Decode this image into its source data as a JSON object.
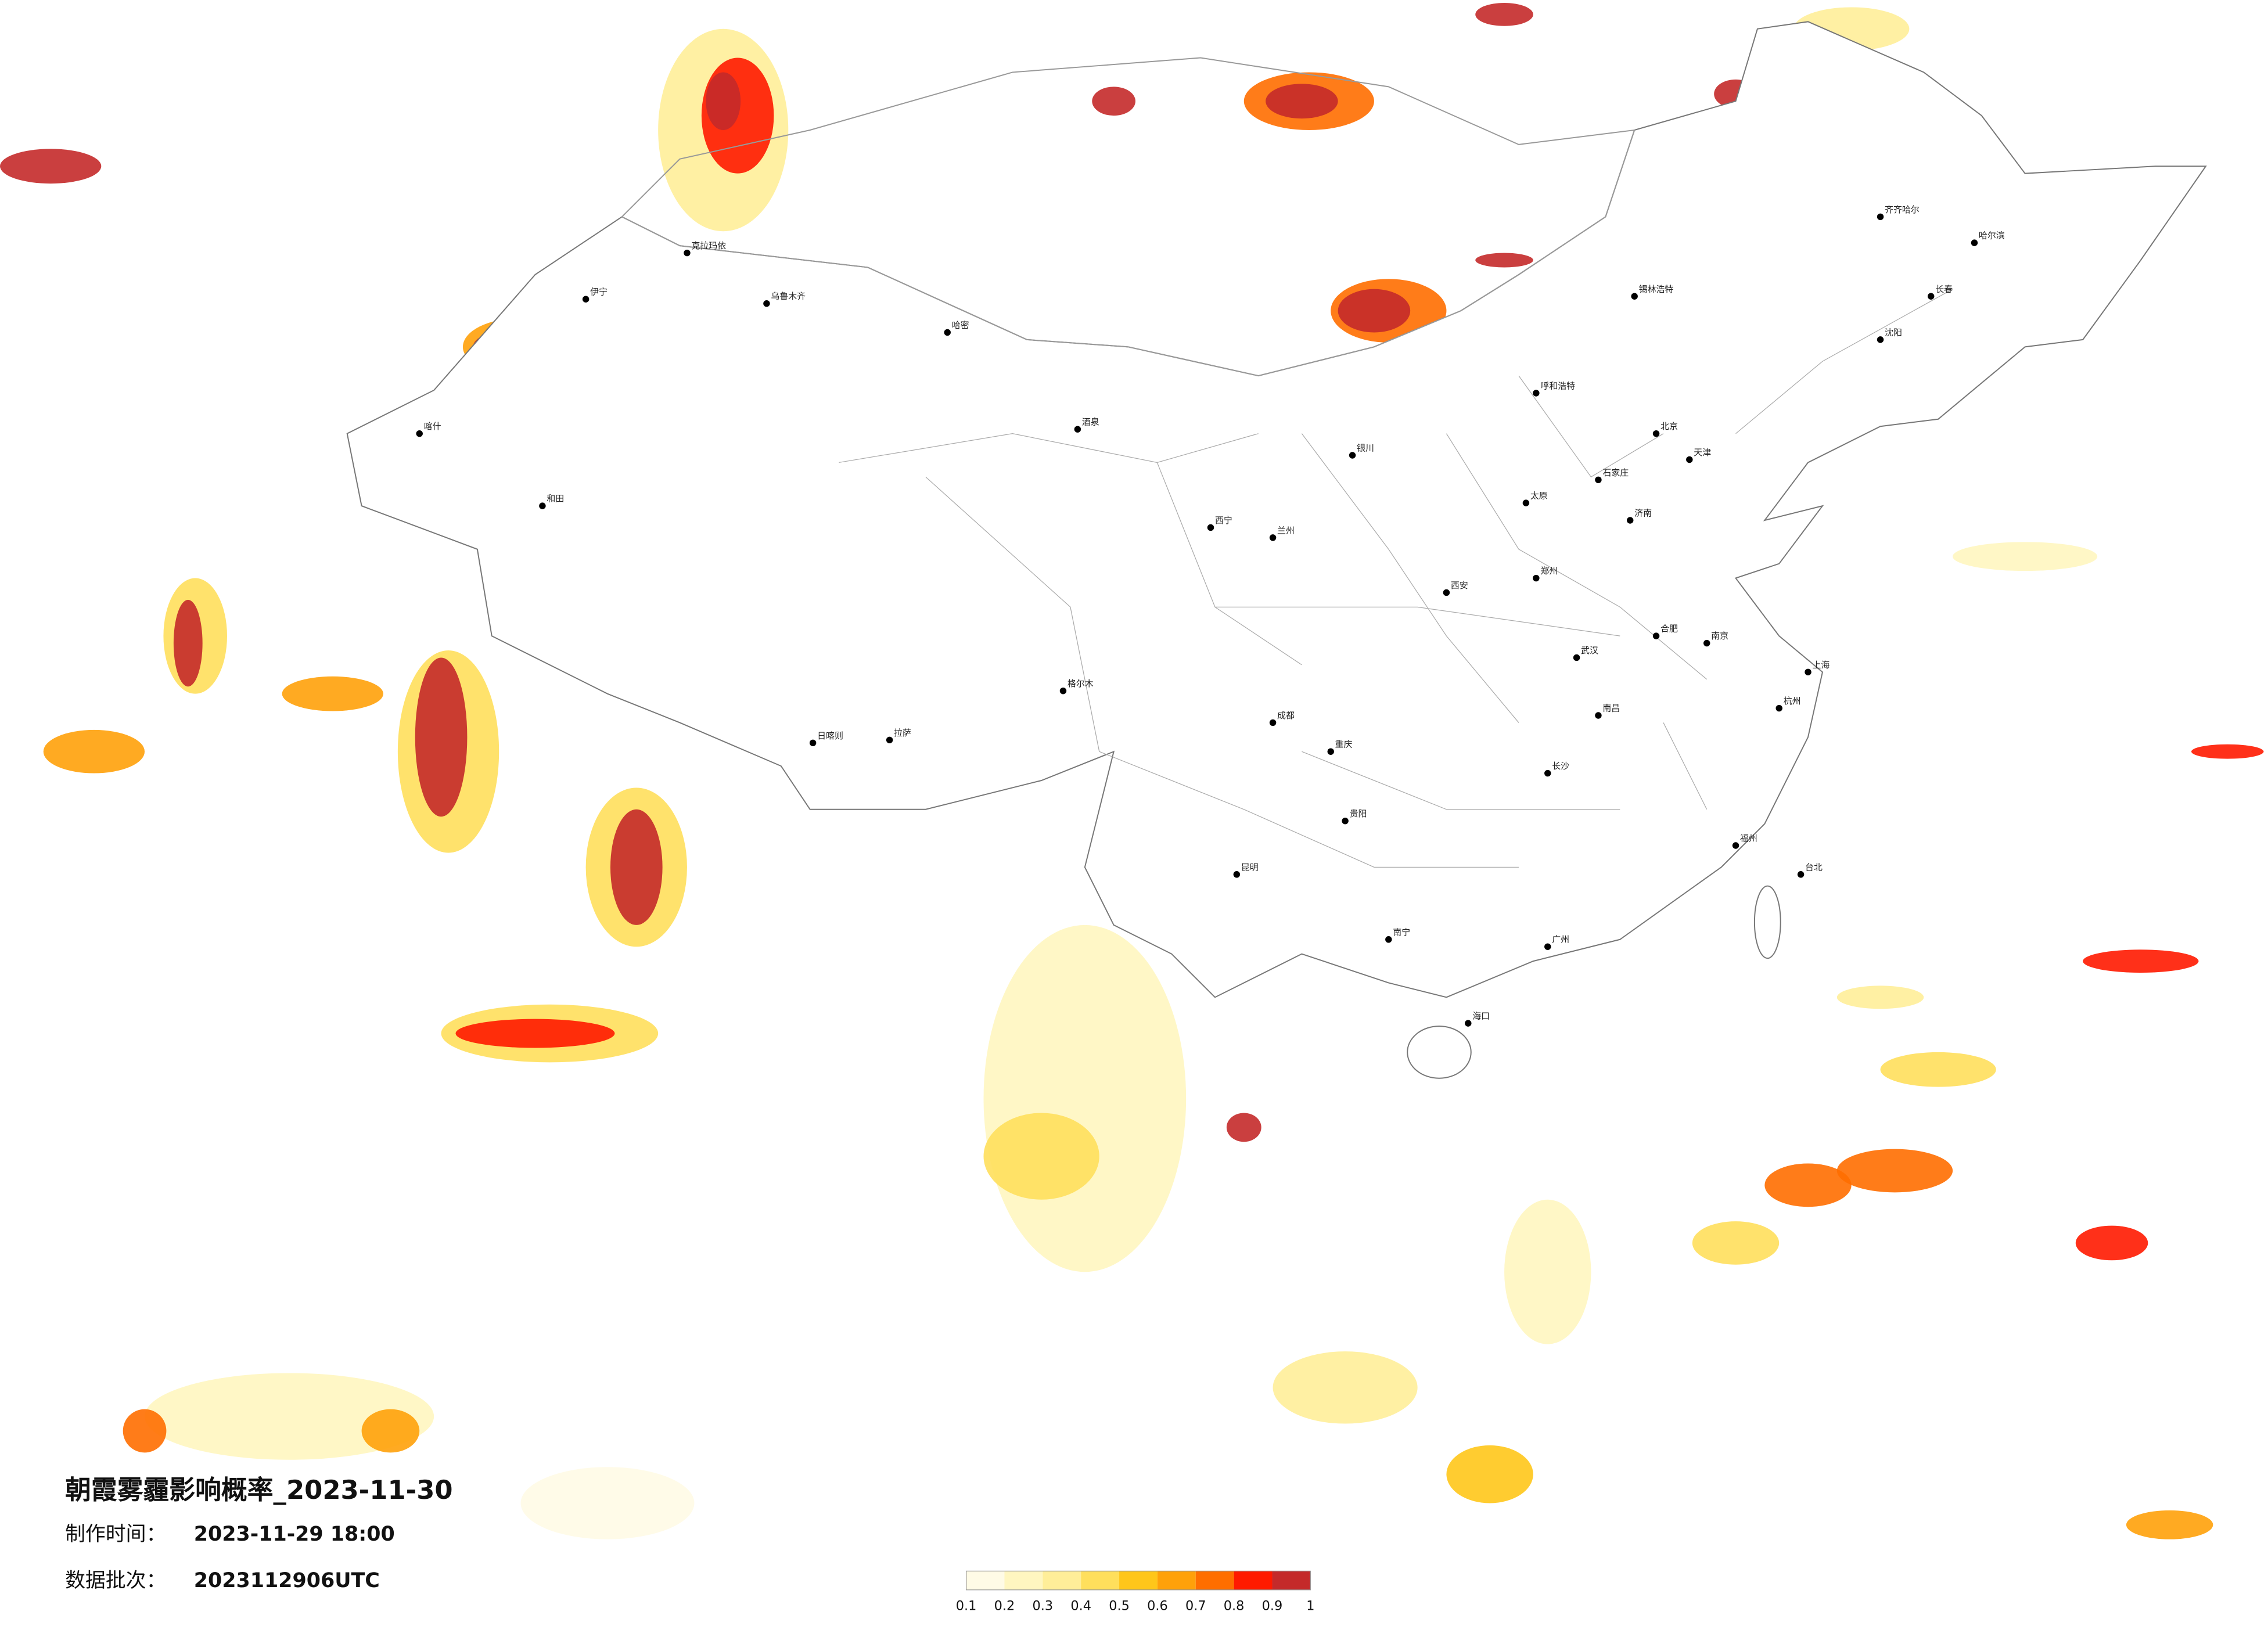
{
  "header": {
    "title": "朝霞雾霾影响概率_2023-11-30",
    "made_label": "制作时间：",
    "made_value": "2023-11-29 18:00",
    "batch_label": "数据批次：",
    "batch_value": "2023112906UTC"
  },
  "legend": {
    "ticks": [
      0.1,
      0.2,
      0.3,
      0.4,
      0.5,
      0.6,
      0.7,
      0.8,
      0.9,
      1
    ],
    "colors": [
      "#fffbe6",
      "#fff6c0",
      "#ffee99",
      "#ffdf5c",
      "#ffc61a",
      "#ffa10a",
      "#ff6e00",
      "#ff1a00",
      "#c42a2a"
    ]
  },
  "cities": [
    "克拉玛依",
    "乌鲁木齐",
    "伊宁",
    "喀什",
    "和田",
    "哈密",
    "格尔木",
    "拉萨",
    "日喀则",
    "酒泉",
    "西宁",
    "兰州",
    "银川",
    "呼和浩特",
    "北京",
    "天津",
    "石家庄",
    "太原",
    "西安",
    "郑州",
    "济南",
    "南京",
    "上海",
    "杭州",
    "武汉",
    "长沙",
    "成都",
    "重庆",
    "昆明",
    "贵阳",
    "南宁",
    "广州",
    "福州",
    "台北",
    "海口",
    "沈阳",
    "长春",
    "哈尔滨",
    "齐齐哈尔",
    "锡林浩特",
    "合肥",
    "南昌"
  ]
}
